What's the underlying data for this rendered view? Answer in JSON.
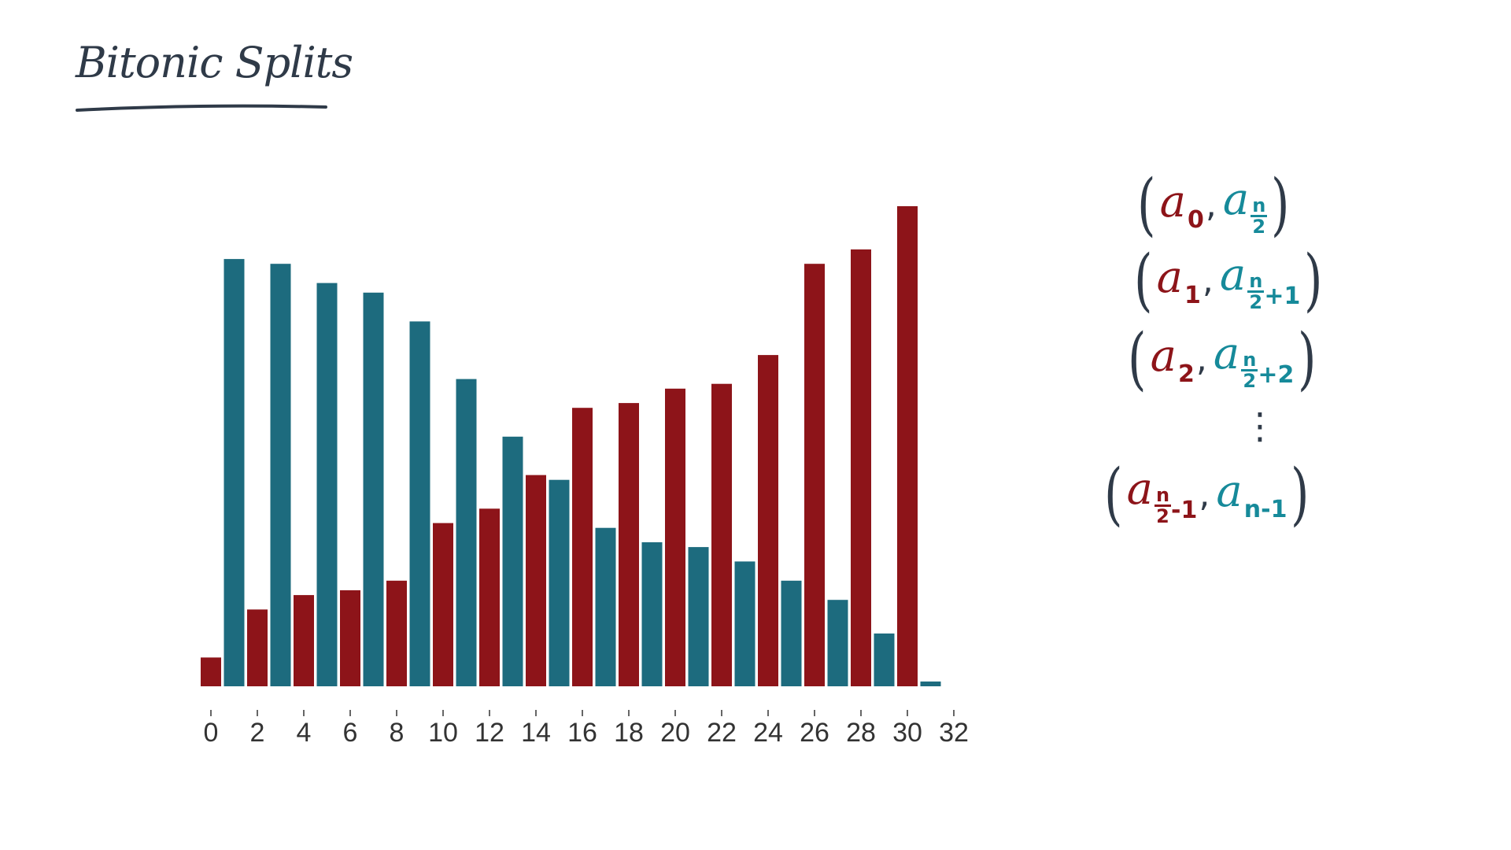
{
  "title": "Bitonic Splits",
  "chart_data": {
    "type": "bar",
    "x": [
      0,
      1,
      2,
      3,
      4,
      5,
      6,
      7,
      8,
      9,
      10,
      11,
      12,
      13,
      14,
      15,
      16,
      17,
      18,
      19,
      20,
      21,
      22,
      23,
      24,
      25,
      26,
      27,
      28,
      29,
      30,
      31
    ],
    "values": [
      6,
      89,
      16,
      88,
      19,
      84,
      20,
      82,
      22,
      76,
      34,
      64,
      37,
      52,
      44,
      43,
      58,
      33,
      59,
      30,
      62,
      29,
      63,
      26,
      69,
      22,
      88,
      18,
      91,
      11,
      100,
      1
    ],
    "colors": [
      "#8d1419",
      "#1d6b7e",
      "#8d1419",
      "#1d6b7e",
      "#8d1419",
      "#1d6b7e",
      "#8d1419",
      "#1d6b7e",
      "#8d1419",
      "#1d6b7e",
      "#8d1419",
      "#1d6b7e",
      "#8d1419",
      "#1d6b7e",
      "#8d1419",
      "#1d6b7e",
      "#8d1419",
      "#1d6b7e",
      "#8d1419",
      "#1d6b7e",
      "#8d1419",
      "#1d6b7e",
      "#8d1419",
      "#1d6b7e",
      "#8d1419",
      "#1d6b7e",
      "#8d1419",
      "#1d6b7e",
      "#8d1419",
      "#1d6b7e",
      "#8d1419",
      "#1d6b7e"
    ],
    "xticks": [
      0,
      2,
      4,
      6,
      8,
      10,
      12,
      14,
      16,
      18,
      20,
      22,
      24,
      26,
      28,
      30,
      32
    ],
    "xlim": [
      0,
      32
    ],
    "ylim": [
      0,
      100
    ],
    "grid": false,
    "title": "",
    "xlabel": "",
    "ylabel": ""
  },
  "pairs": {
    "rows": [
      {
        "left": "a",
        "left_sub": "0",
        "right": "a",
        "right_num": "n",
        "right_den": "2",
        "right_tail": ""
      },
      {
        "left": "a",
        "left_sub": "1",
        "right": "a",
        "right_num": "n",
        "right_den": "2",
        "right_tail": "+1"
      },
      {
        "left": "a",
        "left_sub": "2",
        "right": "a",
        "right_num": "n",
        "right_den": "2",
        "right_tail": "+2"
      }
    ],
    "ellipsis": "⋮",
    "last": {
      "left": "a",
      "left_num": "n",
      "left_den": "2",
      "left_tail": "-1",
      "right": "a",
      "right_sub": "n-1"
    },
    "open_paren": "(",
    "close_paren": ")",
    "comma": ","
  },
  "colors": {
    "red": "#8d1419",
    "teal": "#1d6b7e",
    "teal_text": "#168a9a",
    "ink": "#2f3a48"
  }
}
